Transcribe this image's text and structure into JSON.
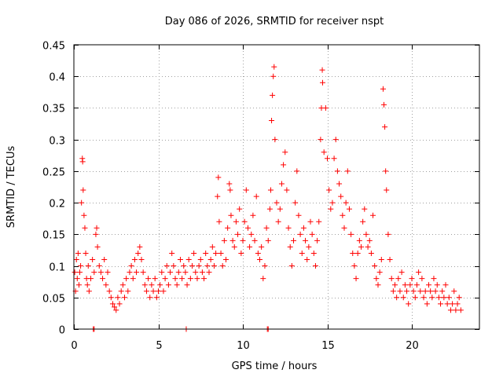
{
  "chart_data": {
    "type": "scatter",
    "title": "Day 086 of 2026, SRMTID for receiver nspt",
    "xlabel": "GPS time / hours",
    "ylabel": "SRMTID / TECUs",
    "xlim": [
      0,
      24
    ],
    "ylim": [
      0,
      0.45
    ],
    "xticks": [
      0,
      5,
      10,
      15,
      20
    ],
    "yticks": [
      0,
      0.05,
      0.1,
      0.15,
      0.2,
      0.25,
      0.3,
      0.35,
      0.4,
      0.45
    ],
    "ytick_labels": [
      "0",
      "0.05",
      "0.1",
      "0.15",
      "0.2",
      "0.25",
      "0.3",
      "0.35",
      "0.4",
      "0.45"
    ],
    "grid": true,
    "marker": "+",
    "color": "#ff0000",
    "series": [
      {
        "name": "SRMTID",
        "points": [
          [
            0.05,
            0.09
          ],
          [
            0.1,
            0.06
          ],
          [
            0.15,
            0.11
          ],
          [
            0.2,
            0.08
          ],
          [
            0.25,
            0.12
          ],
          [
            0.3,
            0.07
          ],
          [
            0.35,
            0.09
          ],
          [
            0.4,
            0.1
          ],
          [
            0.45,
            0.2
          ],
          [
            0.5,
            0.27
          ],
          [
            0.52,
            0.265
          ],
          [
            0.55,
            0.22
          ],
          [
            0.6,
            0.18
          ],
          [
            0.65,
            0.16
          ],
          [
            0.7,
            0.12
          ],
          [
            0.75,
            0.08
          ],
          [
            0.8,
            0.07
          ],
          [
            0.85,
            0.1
          ],
          [
            0.9,
            0.06
          ],
          [
            1.0,
            0.08
          ],
          [
            1.1,
            0.11
          ],
          [
            1.2,
            0.09
          ],
          [
            1.3,
            0.15
          ],
          [
            1.35,
            0.16
          ],
          [
            1.4,
            0.13
          ],
          [
            1.5,
            0.1
          ],
          [
            1.6,
            0.09
          ],
          [
            1.7,
            0.08
          ],
          [
            1.8,
            0.11
          ],
          [
            1.9,
            0.07
          ],
          [
            2.0,
            0.09
          ],
          [
            2.1,
            0.06
          ],
          [
            2.2,
            0.05
          ],
          [
            2.3,
            0.04
          ],
          [
            2.4,
            0.035
          ],
          [
            2.5,
            0.03
          ],
          [
            2.6,
            0.05
          ],
          [
            2.7,
            0.04
          ],
          [
            2.8,
            0.06
          ],
          [
            2.9,
            0.07
          ],
          [
            3.0,
            0.05
          ],
          [
            3.1,
            0.08
          ],
          [
            3.2,
            0.06
          ],
          [
            3.3,
            0.09
          ],
          [
            3.4,
            0.1
          ],
          [
            3.5,
            0.08
          ],
          [
            3.6,
            0.11
          ],
          [
            3.7,
            0.09
          ],
          [
            3.8,
            0.12
          ],
          [
            3.9,
            0.13
          ],
          [
            4.0,
            0.11
          ],
          [
            4.1,
            0.09
          ],
          [
            4.2,
            0.07
          ],
          [
            4.3,
            0.06
          ],
          [
            4.4,
            0.08
          ],
          [
            4.5,
            0.05
          ],
          [
            4.6,
            0.07
          ],
          [
            4.7,
            0.06
          ],
          [
            4.8,
            0.08
          ],
          [
            4.9,
            0.05
          ],
          [
            5.0,
            0.06
          ],
          [
            5.1,
            0.07
          ],
          [
            5.2,
            0.09
          ],
          [
            5.3,
            0.06
          ],
          [
            5.4,
            0.08
          ],
          [
            5.5,
            0.1
          ],
          [
            5.6,
            0.07
          ],
          [
            5.7,
            0.09
          ],
          [
            5.8,
            0.12
          ],
          [
            5.9,
            0.1
          ],
          [
            6.0,
            0.08
          ],
          [
            6.1,
            0.07
          ],
          [
            6.2,
            0.09
          ],
          [
            6.3,
            0.11
          ],
          [
            6.4,
            0.08
          ],
          [
            6.5,
            0.1
          ],
          [
            6.6,
            0.09
          ],
          [
            6.7,
            0.07
          ],
          [
            6.8,
            0.11
          ],
          [
            6.9,
            0.08
          ],
          [
            7.0,
            0.1
          ],
          [
            7.1,
            0.12
          ],
          [
            7.2,
            0.09
          ],
          [
            7.3,
            0.08
          ],
          [
            7.4,
            0.1
          ],
          [
            7.5,
            0.11
          ],
          [
            7.6,
            0.09
          ],
          [
            7.7,
            0.08
          ],
          [
            7.8,
            0.12
          ],
          [
            7.9,
            0.1
          ],
          [
            8.0,
            0.09
          ],
          [
            8.1,
            0.11
          ],
          [
            8.2,
            0.13
          ],
          [
            8.3,
            0.1
          ],
          [
            8.4,
            0.12
          ],
          [
            8.5,
            0.21
          ],
          [
            8.55,
            0.24
          ],
          [
            8.6,
            0.17
          ],
          [
            8.7,
            0.12
          ],
          [
            8.8,
            0.1
          ],
          [
            8.9,
            0.14
          ],
          [
            9.0,
            0.11
          ],
          [
            9.1,
            0.16
          ],
          [
            9.2,
            0.23
          ],
          [
            9.25,
            0.22
          ],
          [
            9.3,
            0.18
          ],
          [
            9.4,
            0.14
          ],
          [
            9.5,
            0.13
          ],
          [
            9.6,
            0.17
          ],
          [
            9.7,
            0.15
          ],
          [
            9.8,
            0.19
          ],
          [
            9.9,
            0.12
          ],
          [
            10.0,
            0.14
          ],
          [
            10.1,
            0.17
          ],
          [
            10.2,
            0.22
          ],
          [
            10.3,
            0.16
          ],
          [
            10.4,
            0.13
          ],
          [
            10.5,
            0.15
          ],
          [
            10.6,
            0.18
          ],
          [
            10.7,
            0.14
          ],
          [
            10.8,
            0.21
          ],
          [
            10.9,
            0.12
          ],
          [
            11.0,
            0.11
          ],
          [
            11.1,
            0.13
          ],
          [
            11.2,
            0.08
          ],
          [
            11.3,
            0.1
          ],
          [
            11.4,
            0.16
          ],
          [
            11.5,
            0.14
          ],
          [
            11.6,
            0.19
          ],
          [
            11.65,
            0.22
          ],
          [
            11.7,
            0.33
          ],
          [
            11.75,
            0.37
          ],
          [
            11.8,
            0.4
          ],
          [
            11.85,
            0.415
          ],
          [
            11.9,
            0.3
          ],
          [
            12.0,
            0.2
          ],
          [
            12.1,
            0.17
          ],
          [
            12.2,
            0.19
          ],
          [
            12.3,
            0.23
          ],
          [
            12.4,
            0.26
          ],
          [
            12.5,
            0.28
          ],
          [
            12.6,
            0.22
          ],
          [
            12.7,
            0.16
          ],
          [
            12.8,
            0.13
          ],
          [
            12.9,
            0.1
          ],
          [
            13.0,
            0.14
          ],
          [
            13.1,
            0.2
          ],
          [
            13.2,
            0.25
          ],
          [
            13.3,
            0.18
          ],
          [
            13.4,
            0.15
          ],
          [
            13.5,
            0.12
          ],
          [
            13.6,
            0.16
          ],
          [
            13.7,
            0.14
          ],
          [
            13.8,
            0.11
          ],
          [
            13.9,
            0.13
          ],
          [
            14.0,
            0.17
          ],
          [
            14.1,
            0.15
          ],
          [
            14.2,
            0.12
          ],
          [
            14.3,
            0.1
          ],
          [
            14.4,
            0.14
          ],
          [
            14.5,
            0.17
          ],
          [
            14.6,
            0.3
          ],
          [
            14.65,
            0.35
          ],
          [
            14.7,
            0.41
          ],
          [
            14.72,
            0.39
          ],
          [
            14.8,
            0.28
          ],
          [
            14.9,
            0.35
          ],
          [
            15.0,
            0.27
          ],
          [
            15.1,
            0.22
          ],
          [
            15.2,
            0.19
          ],
          [
            15.3,
            0.2
          ],
          [
            15.4,
            0.27
          ],
          [
            15.5,
            0.3
          ],
          [
            15.6,
            0.25
          ],
          [
            15.7,
            0.23
          ],
          [
            15.8,
            0.21
          ],
          [
            15.9,
            0.18
          ],
          [
            16.0,
            0.16
          ],
          [
            16.1,
            0.2
          ],
          [
            16.2,
            0.25
          ],
          [
            16.3,
            0.19
          ],
          [
            16.4,
            0.15
          ],
          [
            16.5,
            0.12
          ],
          [
            16.6,
            0.1
          ],
          [
            16.7,
            0.08
          ],
          [
            16.8,
            0.12
          ],
          [
            16.9,
            0.14
          ],
          [
            17.0,
            0.13
          ],
          [
            17.1,
            0.17
          ],
          [
            17.2,
            0.19
          ],
          [
            17.3,
            0.15
          ],
          [
            17.4,
            0.13
          ],
          [
            17.5,
            0.14
          ],
          [
            17.6,
            0.12
          ],
          [
            17.7,
            0.18
          ],
          [
            17.8,
            0.1
          ],
          [
            17.9,
            0.08
          ],
          [
            18.0,
            0.07
          ],
          [
            18.1,
            0.09
          ],
          [
            18.2,
            0.11
          ],
          [
            18.3,
            0.38
          ],
          [
            18.35,
            0.355
          ],
          [
            18.4,
            0.32
          ],
          [
            18.45,
            0.25
          ],
          [
            18.5,
            0.22
          ],
          [
            18.6,
            0.15
          ],
          [
            18.7,
            0.11
          ],
          [
            18.8,
            0.08
          ],
          [
            18.9,
            0.06
          ],
          [
            19.0,
            0.07
          ],
          [
            19.1,
            0.05
          ],
          [
            19.2,
            0.08
          ],
          [
            19.3,
            0.06
          ],
          [
            19.4,
            0.09
          ],
          [
            19.5,
            0.05
          ],
          [
            19.6,
            0.07
          ],
          [
            19.7,
            0.06
          ],
          [
            19.8,
            0.04
          ],
          [
            19.9,
            0.07
          ],
          [
            20.0,
            0.08
          ],
          [
            20.1,
            0.06
          ],
          [
            20.2,
            0.05
          ],
          [
            20.3,
            0.07
          ],
          [
            20.4,
            0.09
          ],
          [
            20.5,
            0.06
          ],
          [
            20.6,
            0.08
          ],
          [
            20.7,
            0.05
          ],
          [
            20.8,
            0.06
          ],
          [
            20.9,
            0.04
          ],
          [
            21.0,
            0.07
          ],
          [
            21.1,
            0.06
          ],
          [
            21.2,
            0.05
          ],
          [
            21.3,
            0.08
          ],
          [
            21.4,
            0.06
          ],
          [
            21.5,
            0.07
          ],
          [
            21.6,
            0.05
          ],
          [
            21.7,
            0.04
          ],
          [
            21.8,
            0.06
          ],
          [
            21.9,
            0.05
          ],
          [
            22.0,
            0.07
          ],
          [
            22.1,
            0.04
          ],
          [
            22.2,
            0.05
          ],
          [
            22.3,
            0.03
          ],
          [
            22.4,
            0.04
          ],
          [
            22.5,
            0.06
          ],
          [
            22.6,
            0.03
          ],
          [
            22.7,
            0.04
          ],
          [
            22.8,
            0.05
          ],
          [
            22.9,
            0.03
          ],
          [
            1.15,
            0.0
          ],
          [
            1.2,
            0.0
          ],
          [
            6.65,
            0.0
          ],
          [
            11.45,
            0.0
          ],
          [
            11.5,
            0.0
          ]
        ]
      }
    ]
  }
}
